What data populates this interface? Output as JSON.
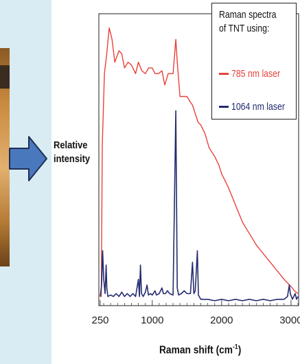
{
  "chart_data": {
    "type": "line",
    "ylabel_line1": "Relative",
    "ylabel_line2": "intensity",
    "xlabel": "Raman shift (cm",
    "xlabel_sup": "-1",
    "xlabel_close": ")",
    "xlim": [
      250,
      3100
    ],
    "x_ticks": [
      {
        "value": 250,
        "label": "250"
      },
      {
        "value": 1000,
        "label": "1000"
      },
      {
        "value": 2000,
        "label": "2000"
      },
      {
        "value": 3000,
        "label": "3000"
      }
    ],
    "legend_title_line1": "Raman spectra",
    "legend_title_line2": "of TNT using:",
    "series": [
      {
        "name": "785 nm laser",
        "color": "#e8413a",
        "points": [
          [
            250,
            0.02
          ],
          [
            265,
            0.02
          ],
          [
            280,
            0.55
          ],
          [
            310,
            0.8
          ],
          [
            340,
            0.86
          ],
          [
            380,
            0.96
          ],
          [
            420,
            0.92
          ],
          [
            460,
            0.84
          ],
          [
            520,
            0.88
          ],
          [
            560,
            0.87
          ],
          [
            600,
            0.82
          ],
          [
            650,
            0.84
          ],
          [
            700,
            0.83
          ],
          [
            760,
            0.8
          ],
          [
            800,
            0.84
          ],
          [
            850,
            0.81
          ],
          [
            900,
            0.8
          ],
          [
            950,
            0.82
          ],
          [
            1000,
            0.82
          ],
          [
            1040,
            0.8
          ],
          [
            1090,
            0.8
          ],
          [
            1140,
            0.81
          ],
          [
            1180,
            0.76
          ],
          [
            1230,
            0.8
          ],
          [
            1300,
            0.8
          ],
          [
            1340,
            0.92
          ],
          [
            1360,
            0.84
          ],
          [
            1400,
            0.72
          ],
          [
            1450,
            0.72
          ],
          [
            1500,
            0.72
          ],
          [
            1550,
            0.7
          ],
          [
            1580,
            0.69
          ],
          [
            1620,
            0.66
          ],
          [
            1660,
            0.63
          ],
          [
            1700,
            0.62
          ],
          [
            1760,
            0.59
          ],
          [
            1820,
            0.54
          ],
          [
            1900,
            0.51
          ],
          [
            1960,
            0.48
          ],
          [
            2000,
            0.45
          ],
          [
            2100,
            0.4
          ],
          [
            2200,
            0.34
          ],
          [
            2300,
            0.28
          ],
          [
            2400,
            0.24
          ],
          [
            2500,
            0.2
          ],
          [
            2600,
            0.17
          ],
          [
            2700,
            0.14
          ],
          [
            2800,
            0.11
          ],
          [
            2900,
            0.08
          ],
          [
            3000,
            0.055
          ],
          [
            3050,
            0.04
          ],
          [
            3100,
            0.03
          ]
        ]
      },
      {
        "name": "1064 nm laser",
        "color": "#232a6e",
        "points": [
          [
            250,
            0.02
          ],
          [
            270,
            0.06
          ],
          [
            285,
            0.18
          ],
          [
            300,
            0.08
          ],
          [
            320,
            0.03
          ],
          [
            335,
            0.13
          ],
          [
            345,
            0.05
          ],
          [
            360,
            0.02
          ],
          [
            400,
            0.025
          ],
          [
            440,
            0.02
          ],
          [
            480,
            0.03
          ],
          [
            520,
            0.02
          ],
          [
            560,
            0.035
          ],
          [
            600,
            0.02
          ],
          [
            640,
            0.03
          ],
          [
            680,
            0.02
          ],
          [
            720,
            0.03
          ],
          [
            760,
            0.02
          ],
          [
            800,
            0.08
          ],
          [
            815,
            0.02
          ],
          [
            830,
            0.13
          ],
          [
            845,
            0.03
          ],
          [
            870,
            0.02
          ],
          [
            900,
            0.035
          ],
          [
            925,
            0.06
          ],
          [
            945,
            0.025
          ],
          [
            975,
            0.03
          ],
          [
            1000,
            0.025
          ],
          [
            1040,
            0.04
          ],
          [
            1060,
            0.025
          ],
          [
            1100,
            0.03
          ],
          [
            1140,
            0.05
          ],
          [
            1160,
            0.03
          ],
          [
            1190,
            0.03
          ],
          [
            1220,
            0.04
          ],
          [
            1250,
            0.03
          ],
          [
            1300,
            0.025
          ],
          [
            1340,
            0.67
          ],
          [
            1360,
            0.05
          ],
          [
            1380,
            0.025
          ],
          [
            1420,
            0.03
          ],
          [
            1460,
            0.04
          ],
          [
            1500,
            0.03
          ],
          [
            1550,
            0.03
          ],
          [
            1580,
            0.14
          ],
          [
            1600,
            0.03
          ],
          [
            1620,
            0.04
          ],
          [
            1650,
            0.18
          ],
          [
            1665,
            0.025
          ],
          [
            1700,
            0.01
          ],
          [
            1800,
            0.01
          ],
          [
            1900,
            0.005
          ],
          [
            2000,
            0.01
          ],
          [
            2100,
            0.005
          ],
          [
            2200,
            0.01
          ],
          [
            2300,
            0.005
          ],
          [
            2400,
            0.01
          ],
          [
            2500,
            0.005
          ],
          [
            2600,
            0.01
          ],
          [
            2700,
            0.005
          ],
          [
            2800,
            0.01
          ],
          [
            2900,
            0.01
          ],
          [
            2950,
            0.02
          ],
          [
            2975,
            0.06
          ],
          [
            2990,
            0.03
          ],
          [
            3020,
            0.01
          ],
          [
            3060,
            0.03
          ],
          [
            3080,
            0.01
          ],
          [
            3100,
            0.02
          ]
        ]
      }
    ]
  },
  "colors": {
    "background": "#d9ecf4",
    "arrow_fill": "#4a78bd",
    "arrow_stroke": "#1d2f55"
  },
  "decor": {
    "arrow_icon": "right-arrow-icon",
    "photo": "wood-photo-fragment"
  }
}
